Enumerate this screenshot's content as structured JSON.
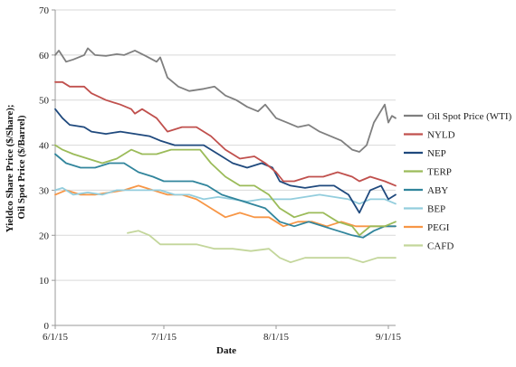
{
  "chart_data": {
    "type": "line",
    "xlabel": "Date",
    "ylabel_line1": "Yieldco Share Price ($/Share);",
    "ylabel_line2": "Oil Spot Price ($/Barrel)",
    "ylim": [
      0,
      70
    ],
    "y_ticks": [
      "0",
      "10",
      "20",
      "30",
      "40",
      "50",
      "60",
      "70"
    ],
    "x_range": [
      "2015-06-01",
      "2015-09-03"
    ],
    "x_ticks": [
      {
        "date": "2015-06-01",
        "label": "6/1/15"
      },
      {
        "date": "2015-07-01",
        "label": "7/1/15"
      },
      {
        "date": "2015-08-01",
        "label": "8/1/15"
      },
      {
        "date": "2015-09-01",
        "label": "9/1/15"
      }
    ],
    "grid": "horizontal",
    "legend_position": "right",
    "series": [
      {
        "name": "Oil Spot Price (WTI)",
        "color": "#7f7f7f",
        "points": [
          [
            "2015-06-01",
            60
          ],
          [
            "2015-06-02",
            61
          ],
          [
            "2015-06-04",
            58.5
          ],
          [
            "2015-06-06",
            59
          ],
          [
            "2015-06-09",
            60
          ],
          [
            "2015-06-10",
            61.5
          ],
          [
            "2015-06-12",
            60
          ],
          [
            "2015-06-15",
            59.8
          ],
          [
            "2015-06-18",
            60.2
          ],
          [
            "2015-06-20",
            60
          ],
          [
            "2015-06-23",
            61
          ],
          [
            "2015-06-26",
            59.8
          ],
          [
            "2015-06-29",
            58.5
          ],
          [
            "2015-06-30",
            59.5
          ],
          [
            "2015-07-02",
            55
          ],
          [
            "2015-07-05",
            53
          ],
          [
            "2015-07-08",
            52
          ],
          [
            "2015-07-12",
            52.5
          ],
          [
            "2015-07-15",
            53
          ],
          [
            "2015-07-18",
            51
          ],
          [
            "2015-07-21",
            50
          ],
          [
            "2015-07-24",
            48.5
          ],
          [
            "2015-07-27",
            47.5
          ],
          [
            "2015-07-29",
            49
          ],
          [
            "2015-08-01",
            46
          ],
          [
            "2015-08-04",
            45
          ],
          [
            "2015-08-07",
            44
          ],
          [
            "2015-08-10",
            44.5
          ],
          [
            "2015-08-13",
            43
          ],
          [
            "2015-08-16",
            42
          ],
          [
            "2015-08-19",
            41
          ],
          [
            "2015-08-22",
            39
          ],
          [
            "2015-08-24",
            38.5
          ],
          [
            "2015-08-26",
            40
          ],
          [
            "2015-08-28",
            45
          ],
          [
            "2015-08-31",
            49
          ],
          [
            "2015-09-01",
            45
          ],
          [
            "2015-09-02",
            46.5
          ],
          [
            "2015-09-03",
            46
          ]
        ]
      },
      {
        "name": "NYLD",
        "color": "#c0504d",
        "points": [
          [
            "2015-06-01",
            54
          ],
          [
            "2015-06-03",
            54
          ],
          [
            "2015-06-05",
            53
          ],
          [
            "2015-06-09",
            53
          ],
          [
            "2015-06-11",
            51.5
          ],
          [
            "2015-06-15",
            50
          ],
          [
            "2015-06-19",
            49
          ],
          [
            "2015-06-22",
            48
          ],
          [
            "2015-06-23",
            47
          ],
          [
            "2015-06-25",
            48
          ],
          [
            "2015-06-29",
            46
          ],
          [
            "2015-07-02",
            43
          ],
          [
            "2015-07-06",
            44
          ],
          [
            "2015-07-10",
            44
          ],
          [
            "2015-07-14",
            42
          ],
          [
            "2015-07-18",
            39
          ],
          [
            "2015-07-22",
            37
          ],
          [
            "2015-07-26",
            37.5
          ],
          [
            "2015-07-29",
            36
          ],
          [
            "2015-08-01",
            34
          ],
          [
            "2015-08-03",
            32
          ],
          [
            "2015-08-06",
            32
          ],
          [
            "2015-08-10",
            33
          ],
          [
            "2015-08-14",
            33
          ],
          [
            "2015-08-18",
            34
          ],
          [
            "2015-08-22",
            33
          ],
          [
            "2015-08-24",
            32
          ],
          [
            "2015-08-27",
            33
          ],
          [
            "2015-08-31",
            32
          ],
          [
            "2015-09-03",
            31
          ]
        ]
      },
      {
        "name": "NEP",
        "color": "#1f497d",
        "points": [
          [
            "2015-06-01",
            48
          ],
          [
            "2015-06-03",
            46
          ],
          [
            "2015-06-05",
            44.5
          ],
          [
            "2015-06-09",
            44
          ],
          [
            "2015-06-11",
            43
          ],
          [
            "2015-06-15",
            42.5
          ],
          [
            "2015-06-19",
            43
          ],
          [
            "2015-06-23",
            42.5
          ],
          [
            "2015-06-27",
            42
          ],
          [
            "2015-06-30",
            41
          ],
          [
            "2015-07-04",
            40
          ],
          [
            "2015-07-08",
            40
          ],
          [
            "2015-07-12",
            40
          ],
          [
            "2015-07-16",
            38
          ],
          [
            "2015-07-20",
            36
          ],
          [
            "2015-07-24",
            35
          ],
          [
            "2015-07-28",
            36
          ],
          [
            "2015-07-31",
            35
          ],
          [
            "2015-08-02",
            32
          ],
          [
            "2015-08-05",
            31
          ],
          [
            "2015-08-09",
            30.5
          ],
          [
            "2015-08-13",
            31
          ],
          [
            "2015-08-17",
            31
          ],
          [
            "2015-08-21",
            29
          ],
          [
            "2015-08-24",
            25
          ],
          [
            "2015-08-27",
            30
          ],
          [
            "2015-08-30",
            31
          ],
          [
            "2015-09-01",
            28
          ],
          [
            "2015-09-03",
            29
          ]
        ]
      },
      {
        "name": "TERP",
        "color": "#9bbb59",
        "points": [
          [
            "2015-06-01",
            40
          ],
          [
            "2015-06-03",
            39
          ],
          [
            "2015-06-06",
            38
          ],
          [
            "2015-06-10",
            37
          ],
          [
            "2015-06-14",
            36
          ],
          [
            "2015-06-18",
            37
          ],
          [
            "2015-06-22",
            39
          ],
          [
            "2015-06-25",
            38
          ],
          [
            "2015-06-29",
            38
          ],
          [
            "2015-07-03",
            39
          ],
          [
            "2015-07-07",
            39
          ],
          [
            "2015-07-11",
            39
          ],
          [
            "2015-07-14",
            36
          ],
          [
            "2015-07-18",
            33
          ],
          [
            "2015-07-22",
            31
          ],
          [
            "2015-07-26",
            31
          ],
          [
            "2015-07-30",
            29
          ],
          [
            "2015-08-02",
            26
          ],
          [
            "2015-08-06",
            24
          ],
          [
            "2015-08-10",
            25
          ],
          [
            "2015-08-14",
            25
          ],
          [
            "2015-08-18",
            23
          ],
          [
            "2015-08-22",
            22
          ],
          [
            "2015-08-24",
            20
          ],
          [
            "2015-08-27",
            22
          ],
          [
            "2015-08-31",
            22
          ],
          [
            "2015-09-03",
            23
          ]
        ]
      },
      {
        "name": "ABY",
        "color": "#31859c",
        "points": [
          [
            "2015-06-01",
            38
          ],
          [
            "2015-06-04",
            36
          ],
          [
            "2015-06-08",
            35
          ],
          [
            "2015-06-12",
            35
          ],
          [
            "2015-06-16",
            36
          ],
          [
            "2015-06-20",
            36
          ],
          [
            "2015-06-24",
            34
          ],
          [
            "2015-06-28",
            33
          ],
          [
            "2015-07-01",
            32
          ],
          [
            "2015-07-05",
            32
          ],
          [
            "2015-07-09",
            32
          ],
          [
            "2015-07-13",
            31
          ],
          [
            "2015-07-17",
            29
          ],
          [
            "2015-07-21",
            28
          ],
          [
            "2015-07-25",
            27
          ],
          [
            "2015-07-29",
            26
          ],
          [
            "2015-08-02",
            23
          ],
          [
            "2015-08-06",
            22
          ],
          [
            "2015-08-10",
            23
          ],
          [
            "2015-08-14",
            22
          ],
          [
            "2015-08-18",
            21
          ],
          [
            "2015-08-22",
            20
          ],
          [
            "2015-08-25",
            19.5
          ],
          [
            "2015-08-28",
            21
          ],
          [
            "2015-08-31",
            22
          ],
          [
            "2015-09-03",
            22
          ]
        ]
      },
      {
        "name": "BEP",
        "color": "#93cddd",
        "points": [
          [
            "2015-06-01",
            30
          ],
          [
            "2015-06-03",
            30.5
          ],
          [
            "2015-06-06",
            29
          ],
          [
            "2015-06-10",
            29.5
          ],
          [
            "2015-06-14",
            29
          ],
          [
            "2015-06-18",
            30
          ],
          [
            "2015-06-22",
            30
          ],
          [
            "2015-06-26",
            30
          ],
          [
            "2015-06-30",
            30
          ],
          [
            "2015-07-04",
            29
          ],
          [
            "2015-07-08",
            29
          ],
          [
            "2015-07-12",
            28
          ],
          [
            "2015-07-16",
            28.5
          ],
          [
            "2015-07-20",
            28
          ],
          [
            "2015-07-24",
            27.5
          ],
          [
            "2015-07-28",
            28
          ],
          [
            "2015-08-01",
            28
          ],
          [
            "2015-08-05",
            28
          ],
          [
            "2015-08-09",
            28.5
          ],
          [
            "2015-08-13",
            29
          ],
          [
            "2015-08-17",
            28.5
          ],
          [
            "2015-08-21",
            28
          ],
          [
            "2015-08-24",
            27
          ],
          [
            "2015-08-27",
            28
          ],
          [
            "2015-08-31",
            28
          ],
          [
            "2015-09-03",
            27
          ]
        ]
      },
      {
        "name": "PEGI",
        "color": "#f79646",
        "points": [
          [
            "2015-06-01",
            29
          ],
          [
            "2015-06-04",
            30
          ],
          [
            "2015-06-08",
            29
          ],
          [
            "2015-06-12",
            29
          ],
          [
            "2015-06-16",
            29.5
          ],
          [
            "2015-06-20",
            30
          ],
          [
            "2015-06-24",
            31
          ],
          [
            "2015-06-28",
            30
          ],
          [
            "2015-07-02",
            29
          ],
          [
            "2015-07-06",
            29
          ],
          [
            "2015-07-10",
            28
          ],
          [
            "2015-07-14",
            26
          ],
          [
            "2015-07-18",
            24
          ],
          [
            "2015-07-22",
            25
          ],
          [
            "2015-07-26",
            24
          ],
          [
            "2015-07-30",
            24
          ],
          [
            "2015-08-03",
            22
          ],
          [
            "2015-08-07",
            23
          ],
          [
            "2015-08-11",
            23
          ],
          [
            "2015-08-15",
            22
          ],
          [
            "2015-08-19",
            23
          ],
          [
            "2015-08-23",
            22
          ],
          [
            "2015-08-27",
            22
          ],
          [
            "2015-08-31",
            22
          ],
          [
            "2015-09-03",
            22
          ]
        ]
      },
      {
        "name": "CAFD",
        "color": "#c3d69b",
        "points": [
          [
            "2015-06-21",
            20.5
          ],
          [
            "2015-06-24",
            21
          ],
          [
            "2015-06-27",
            20
          ],
          [
            "2015-06-30",
            18
          ],
          [
            "2015-07-05",
            18
          ],
          [
            "2015-07-10",
            18
          ],
          [
            "2015-07-15",
            17
          ],
          [
            "2015-07-20",
            17
          ],
          [
            "2015-07-25",
            16.5
          ],
          [
            "2015-07-30",
            17
          ],
          [
            "2015-08-02",
            15
          ],
          [
            "2015-08-05",
            14
          ],
          [
            "2015-08-09",
            15
          ],
          [
            "2015-08-13",
            15
          ],
          [
            "2015-08-17",
            15
          ],
          [
            "2015-08-21",
            15
          ],
          [
            "2015-08-25",
            14
          ],
          [
            "2015-08-29",
            15
          ],
          [
            "2015-09-03",
            15
          ]
        ]
      }
    ]
  }
}
